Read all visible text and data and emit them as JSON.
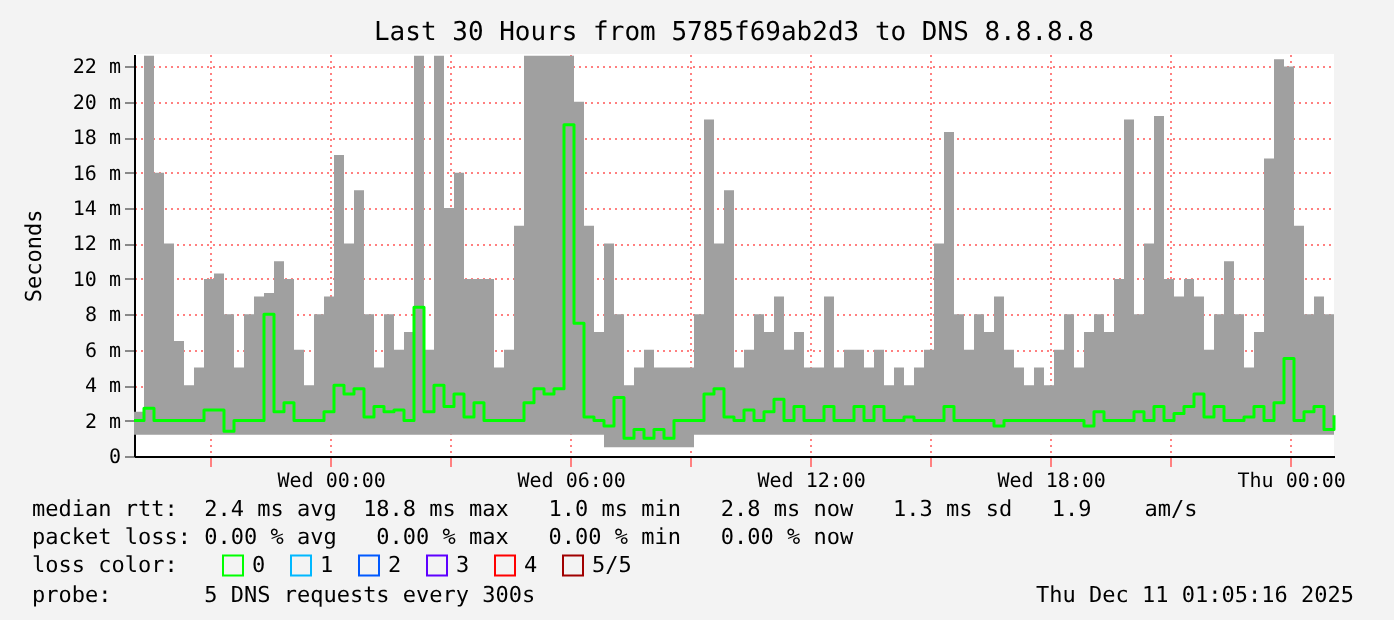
{
  "chart_data": {
    "type": "step",
    "title": "Last 30 Hours from 5785f69ab2d3 to DNS 8.8.8.8",
    "ylabel": "Seconds",
    "legend_title": "loss color:",
    "legend": "bottom left",
    "grid": true,
    "line_style": "solid",
    "xlim": [
      "2025-12-09T19:05",
      "2025-12-11T01:05"
    ],
    "xticks": [
      {
        "value": "2025-12-09T21:00",
        "label": null
      },
      {
        "value": "2025-12-10T00:00",
        "label": "Wed 00:00"
      },
      {
        "value": "2025-12-10T03:00",
        "label": null
      },
      {
        "value": "2025-12-10T06:00",
        "label": "Wed 06:00"
      },
      {
        "value": "2025-12-10T09:00",
        "label": null
      },
      {
        "value": "2025-12-10T12:00",
        "label": "Wed 12:00"
      },
      {
        "value": "2025-12-10T15:00",
        "label": null
      },
      {
        "value": "2025-12-10T18:00",
        "label": "Wed 18:00"
      },
      {
        "value": "2025-12-10T21:00",
        "label": null
      },
      {
        "value": "2025-12-11T00:00",
        "label": "Thu 00:00"
      }
    ],
    "ylim": [
      0,
      22.7
    ],
    "yticks": [
      0,
      {
        "value": 2,
        "label": "2 m"
      },
      {
        "value": 4,
        "label": "4 m"
      },
      {
        "value": 6,
        "label": "6 m"
      },
      {
        "value": 8,
        "label": "8 m"
      },
      {
        "value": 10,
        "label": "10 m"
      },
      {
        "value": 12,
        "label": "12 m"
      },
      {
        "value": 14,
        "label": "14 m"
      },
      {
        "value": 16,
        "label": "16 m"
      },
      {
        "value": 18,
        "label": "18 m"
      },
      {
        "value": 20,
        "label": "20 m"
      },
      {
        "value": 22,
        "label": "22 m"
      }
    ],
    "x": [
      "2025-12-09T19:05",
      "2025-12-09T19:20",
      "2025-12-09T19:35",
      "2025-12-09T19:50",
      "2025-12-09T20:05",
      "2025-12-09T20:20",
      "2025-12-09T20:35",
      "2025-12-09T20:50",
      "2025-12-09T21:05",
      "2025-12-09T21:20",
      "2025-12-09T21:35",
      "2025-12-09T21:50",
      "2025-12-09T22:05",
      "2025-12-09T22:20",
      "2025-12-09T22:35",
      "2025-12-09T22:50",
      "2025-12-09T23:05",
      "2025-12-09T23:20",
      "2025-12-09T23:35",
      "2025-12-09T23:50",
      "2025-12-10T00:05",
      "2025-12-10T00:20",
      "2025-12-10T00:35",
      "2025-12-10T00:50",
      "2025-12-10T01:05",
      "2025-12-10T01:20",
      "2025-12-10T01:35",
      "2025-12-10T01:50",
      "2025-12-10T02:05",
      "2025-12-10T02:20",
      "2025-12-10T02:35",
      "2025-12-10T02:50",
      "2025-12-10T03:05",
      "2025-12-10T03:20",
      "2025-12-10T03:35",
      "2025-12-10T03:50",
      "2025-12-10T04:05",
      "2025-12-10T04:20",
      "2025-12-10T04:35",
      "2025-12-10T04:50",
      "2025-12-10T05:05",
      "2025-12-10T05:20",
      "2025-12-10T05:35",
      "2025-12-10T05:50",
      "2025-12-10T06:05",
      "2025-12-10T06:20",
      "2025-12-10T06:35",
      "2025-12-10T06:50",
      "2025-12-10T07:05",
      "2025-12-10T07:20",
      "2025-12-10T07:35",
      "2025-12-10T07:50",
      "2025-12-10T08:05",
      "2025-12-10T08:20",
      "2025-12-10T08:35",
      "2025-12-10T08:50",
      "2025-12-10T09:05",
      "2025-12-10T09:20",
      "2025-12-10T09:35",
      "2025-12-10T09:50",
      "2025-12-10T10:05",
      "2025-12-10T10:20",
      "2025-12-10T10:35",
      "2025-12-10T10:50",
      "2025-12-10T11:05",
      "2025-12-10T11:20",
      "2025-12-10T11:35",
      "2025-12-10T11:50",
      "2025-12-10T12:05",
      "2025-12-10T12:20",
      "2025-12-10T12:35",
      "2025-12-10T12:50",
      "2025-12-10T13:05",
      "2025-12-10T13:20",
      "2025-12-10T13:35",
      "2025-12-10T13:50",
      "2025-12-10T14:05",
      "2025-12-10T14:20",
      "2025-12-10T14:35",
      "2025-12-10T14:50",
      "2025-12-10T15:05",
      "2025-12-10T15:20",
      "2025-12-10T15:35",
      "2025-12-10T15:50",
      "2025-12-10T16:05",
      "2025-12-10T16:20",
      "2025-12-10T16:35",
      "2025-12-10T16:50",
      "2025-12-10T17:05",
      "2025-12-10T17:20",
      "2025-12-10T17:35",
      "2025-12-10T17:50",
      "2025-12-10T18:05",
      "2025-12-10T18:20",
      "2025-12-10T18:35",
      "2025-12-10T18:50",
      "2025-12-10T19:05",
      "2025-12-10T19:20",
      "2025-12-10T19:35",
      "2025-12-10T19:50",
      "2025-12-10T20:05",
      "2025-12-10T20:20",
      "2025-12-10T20:35",
      "2025-12-10T20:50",
      "2025-12-10T21:05",
      "2025-12-10T21:20",
      "2025-12-10T21:35",
      "2025-12-10T21:50",
      "2025-12-10T22:05",
      "2025-12-10T22:20",
      "2025-12-10T22:35",
      "2025-12-10T22:50",
      "2025-12-10T23:05",
      "2025-12-10T23:20",
      "2025-12-10T23:35",
      "2025-12-10T23:50",
      "2025-12-11T00:05",
      "2025-12-11T00:20",
      "2025-12-11T00:35",
      "2025-12-11T00:50",
      "2025-12-11T01:05"
    ],
    "series": [
      {
        "name": "0",
        "color": "#00ff00",
        "values": [
          2,
          2.7,
          2,
          2,
          2,
          2,
          2,
          2.6,
          2.6,
          1.4,
          2,
          2,
          2,
          8,
          2.5,
          3,
          2,
          2,
          2,
          2.5,
          4,
          3.5,
          3.8,
          2.2,
          2.8,
          2.5,
          2.6,
          2,
          8.4,
          2.5,
          4,
          2.8,
          3.5,
          2.2,
          3,
          2,
          2,
          2,
          2,
          3,
          3.8,
          3.5,
          3.8,
          18.7,
          7.5,
          2.2,
          2,
          1.7,
          3.3,
          1,
          1.5,
          1,
          1.5,
          1,
          2,
          2,
          2,
          3.5,
          3.8,
          2.2,
          2,
          2.6,
          2,
          2.5,
          3.2,
          2,
          2.8,
          2,
          2,
          2.8,
          2,
          2,
          2.8,
          2,
          2.8,
          2,
          2,
          2.2,
          2,
          2,
          2,
          2.8,
          2,
          2,
          2,
          2,
          1.7,
          2,
          2,
          2,
          2,
          2,
          2,
          2,
          2,
          1.7,
          2.5,
          2,
          2,
          2,
          2.5,
          2,
          2.8,
          2,
          2.4,
          2.8,
          3.5,
          2.2,
          2.8,
          2,
          2,
          2.2,
          2.8,
          2,
          3,
          5.5,
          2,
          2.5,
          2.8,
          1.5,
          2.3
        ],
        "lower": [
          1.2,
          1.2,
          1.2,
          1.2,
          1.2,
          1.2,
          1.2,
          1.2,
          1.2,
          1.2,
          1.2,
          1.2,
          1.2,
          1.2,
          1.2,
          1.2,
          1.2,
          1.2,
          1.2,
          1.2,
          1.2,
          1.2,
          1.2,
          1.2,
          1.2,
          1.2,
          1.2,
          1.2,
          1.2,
          1.2,
          1.2,
          1.2,
          1.2,
          1.2,
          1.2,
          1.2,
          1.2,
          1.2,
          1.2,
          1.2,
          1.2,
          1.2,
          1.2,
          1.2,
          1.2,
          1.2,
          1.2,
          0.5,
          0.5,
          0.5,
          0.5,
          0.5,
          0.5,
          0.5,
          0.5,
          0.5,
          1.2,
          1.2,
          1.2,
          1.2,
          1.2,
          1.2,
          1.2,
          1.2,
          1.2,
          1.2,
          1.2,
          1.2,
          1.2,
          1.2,
          1.2,
          1.2,
          1.2,
          1.2,
          1.2,
          1.2,
          1.2,
          1.2,
          1.2,
          1.2,
          1.2,
          1.2,
          1.2,
          1.2,
          1.2,
          1.2,
          1.2,
          1.2,
          1.2,
          1.2,
          1.2,
          1.2,
          1.2,
          1.2,
          1.2,
          1.2,
          1.2,
          1.2,
          1.2,
          1.2,
          1.2,
          1.2,
          1.2,
          1.2,
          1.2,
          1.2,
          1.2,
          1.2,
          1.2,
          1.2,
          1.2,
          1.2,
          1.2,
          1.2,
          1.2,
          1.2,
          1.2,
          1.2,
          1.2,
          1.2,
          1.2
        ],
        "upper": [
          2.5,
          22.6,
          16,
          12,
          6.5,
          4,
          5,
          10,
          10.3,
          8,
          5,
          8,
          9,
          9.2,
          11,
          10,
          6,
          4,
          8,
          9,
          17,
          12,
          15,
          8,
          5,
          8,
          6,
          7,
          22.6,
          6,
          22.6,
          14,
          16,
          10,
          10,
          10,
          5,
          6,
          13,
          22.6,
          22.6,
          22.6,
          22.6,
          22.6,
          20,
          13,
          7,
          12,
          8,
          4,
          5,
          6,
          5,
          5,
          5,
          5,
          8,
          19,
          12,
          15,
          5,
          6,
          8,
          7,
          9,
          6,
          7,
          5,
          5,
          9,
          5,
          6,
          6,
          5,
          6,
          4,
          5,
          4,
          5,
          6,
          12,
          18.3,
          8,
          6,
          8,
          7,
          9,
          6,
          5,
          4,
          5,
          4,
          6,
          8,
          5,
          7,
          8,
          7,
          10,
          19,
          8,
          12,
          19.2,
          10,
          9,
          10,
          9,
          6,
          8,
          11,
          8,
          5,
          7,
          16.8,
          22.4,
          22,
          13,
          8,
          9,
          8,
          5
        ]
      },
      {
        "name": "1",
        "color": "#00b8ff",
        "values": [
          null,
          null,
          null,
          null,
          null,
          null,
          null,
          null,
          null,
          null,
          null,
          null,
          null,
          null,
          null,
          null,
          null,
          null,
          null,
          null,
          null,
          null,
          null,
          null,
          null,
          null,
          null,
          null,
          null,
          null,
          null,
          null,
          null,
          null,
          null,
          null,
          null,
          null,
          null,
          null,
          null,
          null,
          null,
          null,
          null,
          null,
          null,
          null,
          null,
          null,
          null,
          null,
          null,
          null,
          null,
          null,
          null,
          null,
          null,
          null,
          null,
          null,
          null,
          null,
          null,
          null,
          null,
          null,
          null,
          null,
          null,
          null,
          null,
          null,
          null,
          null,
          null,
          null,
          null,
          null,
          null,
          null,
          null,
          null,
          null,
          null,
          null,
          null,
          null,
          null,
          null,
          null,
          null,
          null,
          null,
          null,
          null,
          null,
          null,
          null,
          null,
          null,
          null,
          null,
          null,
          null,
          null,
          null,
          null,
          null,
          null,
          null,
          null,
          null,
          null,
          null,
          null,
          null,
          null,
          null,
          null
        ]
      },
      {
        "name": "2",
        "color": "#0059ff",
        "values": [
          null,
          null,
          null,
          null,
          null,
          null,
          null,
          null,
          null,
          null,
          null,
          null,
          null,
          null,
          null,
          null,
          null,
          null,
          null,
          null,
          null,
          null,
          null,
          null,
          null,
          null,
          null,
          null,
          null,
          null,
          null,
          null,
          null,
          null,
          null,
          null,
          null,
          null,
          null,
          null,
          null,
          null,
          null,
          null,
          null,
          null,
          null,
          null,
          null,
          null,
          null,
          null,
          null,
          null,
          null,
          null,
          null,
          null,
          null,
          null,
          null,
          null,
          null,
          null,
          null,
          null,
          null,
          null,
          null,
          null,
          null,
          null,
          null,
          null,
          null,
          null,
          null,
          null,
          null,
          null,
          null,
          null,
          null,
          null,
          null,
          null,
          null,
          null,
          null,
          null,
          null,
          null,
          null,
          null,
          null,
          null,
          null,
          null,
          null,
          null,
          null,
          null,
          null,
          null,
          null,
          null,
          null,
          null,
          null,
          null,
          null,
          null,
          null,
          null,
          null,
          null,
          null,
          null,
          null,
          null,
          null
        ]
      },
      {
        "name": "3",
        "color": "#5e00ff",
        "values": [
          null,
          null,
          null,
          null,
          null,
          null,
          null,
          null,
          null,
          null,
          null,
          null,
          null,
          null,
          null,
          null,
          null,
          null,
          null,
          null,
          null,
          null,
          null,
          null,
          null,
          null,
          null,
          null,
          null,
          null,
          null,
          null,
          null,
          null,
          null,
          null,
          null,
          null,
          null,
          null,
          null,
          null,
          null,
          null,
          null,
          null,
          null,
          null,
          null,
          null,
          null,
          null,
          null,
          null,
          null,
          null,
          null,
          null,
          null,
          null,
          null,
          null,
          null,
          null,
          null,
          null,
          null,
          null,
          null,
          null,
          null,
          null,
          null,
          null,
          null,
          null,
          null,
          null,
          null,
          null,
          null,
          null,
          null,
          null,
          null,
          null,
          null,
          null,
          null,
          null,
          null,
          null,
          null,
          null,
          null,
          null,
          null,
          null,
          null,
          null,
          null,
          null,
          null,
          null,
          null,
          null,
          null,
          null,
          null,
          null,
          null,
          null,
          null,
          null,
          null,
          null,
          null,
          null,
          null,
          null,
          null
        ]
      },
      {
        "name": "4",
        "color": "#ff0000",
        "values": [
          null,
          null,
          null,
          null,
          null,
          null,
          null,
          null,
          null,
          null,
          null,
          null,
          null,
          null,
          null,
          null,
          null,
          null,
          null,
          null,
          null,
          null,
          null,
          null,
          null,
          null,
          null,
          null,
          null,
          null,
          null,
          null,
          null,
          null,
          null,
          null,
          null,
          null,
          null,
          null,
          null,
          null,
          null,
          null,
          null,
          null,
          null,
          null,
          null,
          null,
          null,
          null,
          null,
          null,
          null,
          null,
          null,
          null,
          null,
          null,
          null,
          null,
          null,
          null,
          null,
          null,
          null,
          null,
          null,
          null,
          null,
          null,
          null,
          null,
          null,
          null,
          null,
          null,
          null,
          null,
          null,
          null,
          null,
          null,
          null,
          null,
          null,
          null,
          null,
          null,
          null,
          null,
          null,
          null,
          null,
          null,
          null,
          null,
          null,
          null,
          null,
          null,
          null,
          null,
          null,
          null,
          null,
          null,
          null,
          null,
          null,
          null,
          null,
          null,
          null,
          null,
          null,
          null,
          null,
          null,
          null
        ]
      },
      {
        "name": "5/5",
        "color": "#a00000",
        "values": [
          null,
          null,
          null,
          null,
          null,
          null,
          null,
          null,
          null,
          null,
          null,
          null,
          null,
          null,
          null,
          null,
          null,
          null,
          null,
          null,
          null,
          null,
          null,
          null,
          null,
          null,
          null,
          null,
          null,
          null,
          null,
          null,
          null,
          null,
          null,
          null,
          null,
          null,
          null,
          null,
          null,
          null,
          null,
          null,
          null,
          null,
          null,
          null,
          null,
          null,
          null,
          null,
          null,
          null,
          null,
          null,
          null,
          null,
          null,
          null,
          null,
          null,
          null,
          null,
          null,
          null,
          null,
          null,
          null,
          null,
          null,
          null,
          null,
          null,
          null,
          null,
          null,
          null,
          null,
          null,
          null,
          null,
          null,
          null,
          null,
          null,
          null,
          null,
          null,
          null,
          null,
          null,
          null,
          null,
          null,
          null,
          null,
          null,
          null,
          null,
          null,
          null,
          null,
          null,
          null,
          null,
          null,
          null,
          null,
          null,
          null,
          null,
          null,
          null,
          null,
          null,
          null,
          null,
          null,
          null,
          null
        ]
      }
    ],
    "annotations": [
      "median rtt:  2.4 ms avg  18.8 ms max   1.0 ms min   2.8 ms now   1.3 ms sd   1.9    am/s",
      "packet loss: 0.00 % avg   0.00 % max   0.00 % min   0.00 % now",
      "probe:       5 DNS requests every 300s",
      "Thu Dec 11 01:05:16 2025"
    ]
  }
}
